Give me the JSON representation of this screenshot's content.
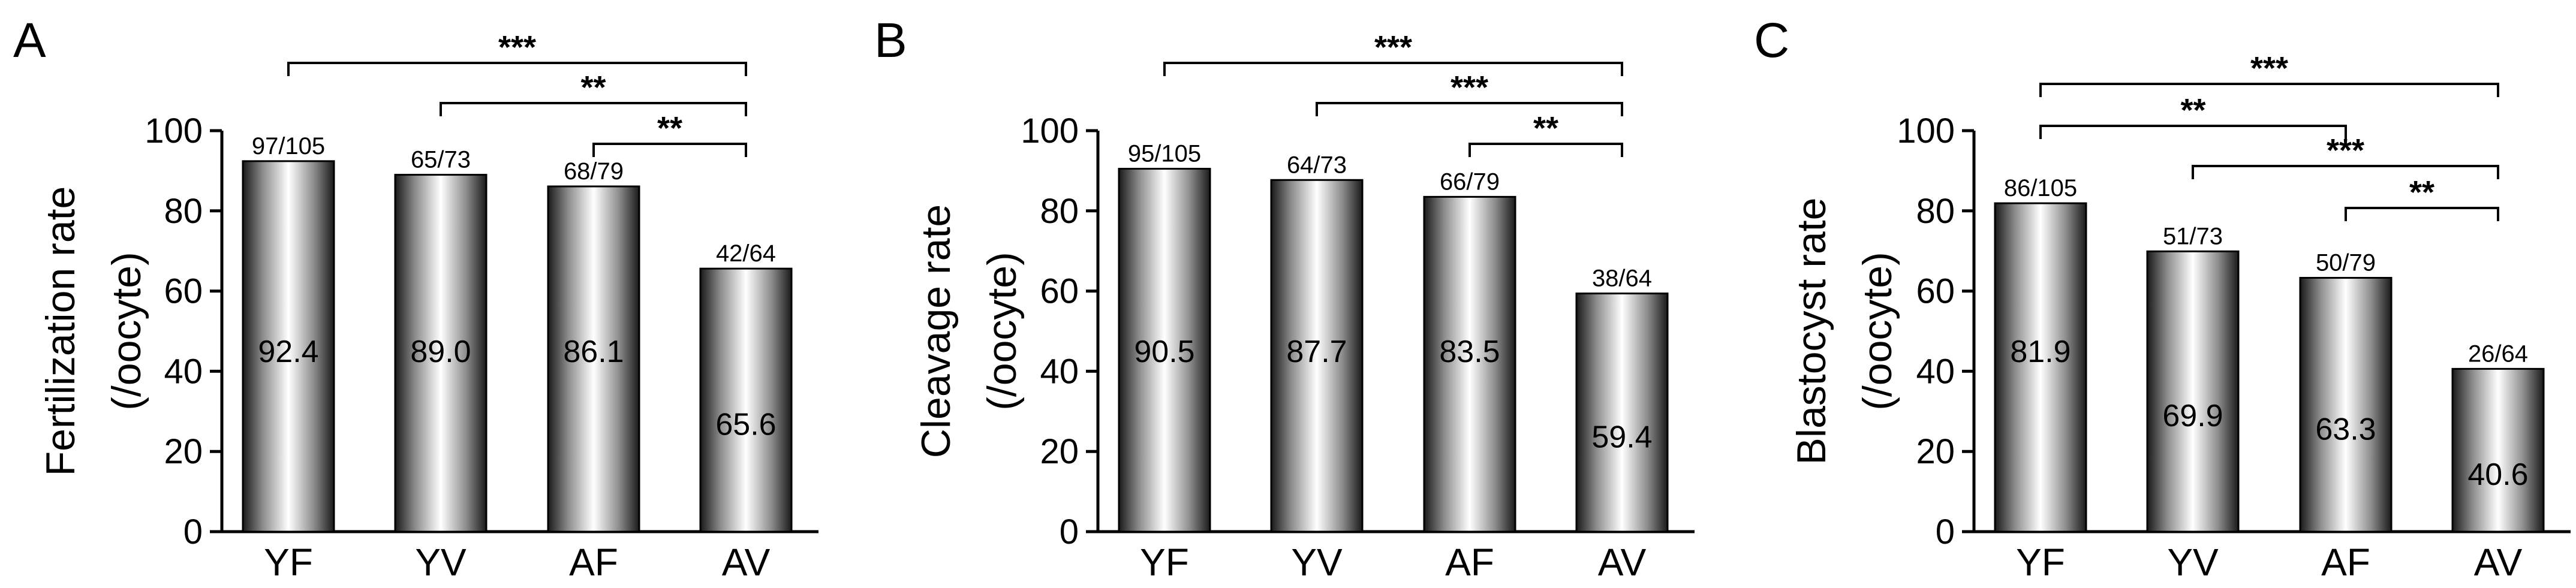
{
  "chart_data": [
    {
      "panel": "A",
      "type": "bar",
      "ylabel": "Fertilization rate",
      "ylabel2": "(/oocyte)",
      "ylim": [
        0,
        100
      ],
      "yticks": [
        0,
        20,
        40,
        60,
        80,
        100
      ],
      "categories": [
        "YF",
        "YV",
        "AF",
        "AV"
      ],
      "values": [
        92.4,
        89.0,
        86.1,
        65.6
      ],
      "value_labels": [
        "92.4",
        "89.0",
        "86.1",
        "65.6"
      ],
      "count_labels": [
        "97/105",
        "65/73",
        "68/79",
        "42/64"
      ],
      "grid": false,
      "comparisons": [
        {
          "from": "YF",
          "to": "AV",
          "label": "***"
        },
        {
          "from": "YV",
          "to": "AV",
          "label": "**"
        },
        {
          "from": "AF",
          "to": "AV",
          "label": "**"
        }
      ]
    },
    {
      "panel": "B",
      "type": "bar",
      "ylabel": "Cleavage rate",
      "ylabel2": "(/oocyte)",
      "ylim": [
        0,
        100
      ],
      "yticks": [
        0,
        20,
        40,
        60,
        80,
        100
      ],
      "categories": [
        "YF",
        "YV",
        "AF",
        "AV"
      ],
      "values": [
        90.5,
        87.7,
        83.5,
        59.4
      ],
      "value_labels": [
        "90.5",
        "87.7",
        "83.5",
        "59.4"
      ],
      "count_labels": [
        "95/105",
        "64/73",
        "66/79",
        "38/64"
      ],
      "grid": false,
      "comparisons": [
        {
          "from": "YF",
          "to": "AV",
          "label": "***"
        },
        {
          "from": "YV",
          "to": "AV",
          "label": "***"
        },
        {
          "from": "AF",
          "to": "AV",
          "label": "**"
        }
      ]
    },
    {
      "panel": "C",
      "type": "bar",
      "ylabel": "Blastocyst rate",
      "ylabel2": "(/oocyte)",
      "ylim": [
        0,
        100
      ],
      "yticks": [
        0,
        20,
        40,
        60,
        80,
        100
      ],
      "categories": [
        "YF",
        "YV",
        "AF",
        "AV"
      ],
      "values": [
        81.9,
        69.9,
        63.3,
        40.6
      ],
      "value_labels": [
        "81.9",
        "69.9",
        "63.3",
        "40.6"
      ],
      "count_labels": [
        "86/105",
        "51/73",
        "50/79",
        "26/64"
      ],
      "grid": false,
      "comparisons": [
        {
          "from": "YF",
          "to": "AV",
          "label": "***"
        },
        {
          "from": "YF",
          "to": "AF",
          "label": "**"
        },
        {
          "from": "YV",
          "to": "AV",
          "label": "***"
        },
        {
          "from": "AF",
          "to": "AV",
          "label": "**"
        }
      ]
    }
  ]
}
